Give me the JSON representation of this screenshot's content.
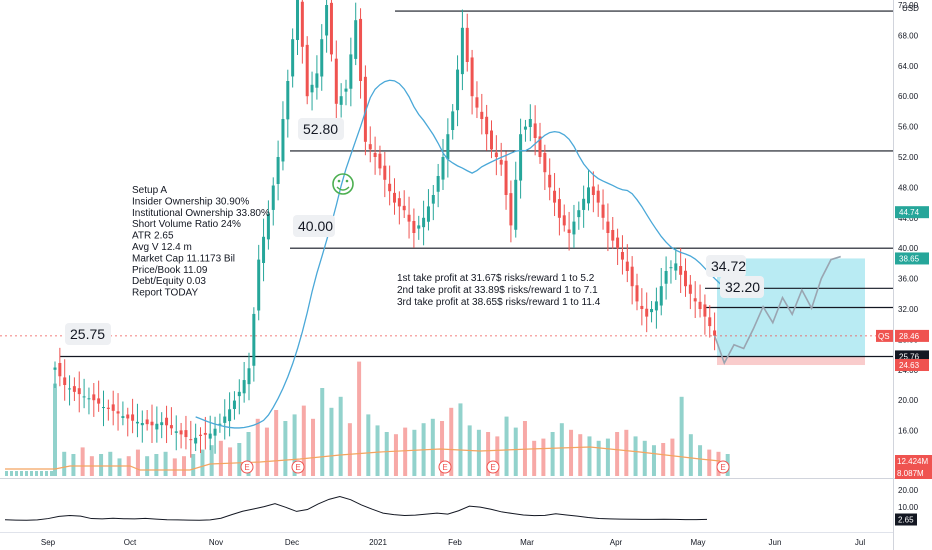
{
  "currency": "USD",
  "colors": {
    "up": "#26a69a",
    "down": "#ef5350",
    "ma": "#4aa8d8",
    "vol_ma": "#f4a460",
    "target_zone": "#7fdbea",
    "stop_zone": "#f8c6c6",
    "level_line": "#131722",
    "smiley": "#4caf50"
  },
  "setup_notes": [
    "Setup A",
    "Insider Ownership 30.90%",
    "Institutional Ownership 33.80%",
    "Short Volume Ratio 24%",
    "ATR 2.65",
    "Avg V 12.4 m",
    "Market Cap 11.1173 Bil",
    "Price/Book 11.09",
    "Debt/Equity 0.03",
    "Report TODAY"
  ],
  "profit_notes": [
    "1st take profit at 31.67$ risks/reward 1 to 5.2",
    "2nd take profit at 33.89$ risks/reward 1 to 7.1",
    "3rd take profit at 38.65$ risks/reward 1 to 11.4"
  ],
  "level_labels": [
    {
      "text": "52.80",
      "value": 52.8
    },
    {
      "text": "40.00",
      "value": 40.0
    },
    {
      "text": "25.75",
      "value": 25.75
    },
    {
      "text": "34.72",
      "value": 34.72
    },
    {
      "text": "32.20",
      "value": 32.2
    }
  ],
  "earnings_marker": "E",
  "chart_data": {
    "type": "candlestick",
    "title": "",
    "x_ticks": [
      "Sep",
      "Oct",
      "Nov",
      "Dec",
      "2021",
      "Feb",
      "Mar",
      "Apr",
      "May",
      "Jun",
      "Jul"
    ],
    "y_ticks": [
      72.0,
      68.0,
      64.0,
      60.0,
      56.0,
      52.0,
      48.0,
      44.0,
      40.0,
      36.0,
      32.0,
      28.0,
      24.0,
      20.0,
      16.0,
      12.0
    ],
    "ylim": [
      8,
      72
    ],
    "price_levels": [
      71.2,
      52.8,
      40.0,
      34.72,
      32.2,
      25.75
    ],
    "price_tags": [
      {
        "label": "44.74",
        "value": 44.74,
        "color": "#26a69a"
      },
      {
        "label": "38.65",
        "value": 38.65,
        "color": "#26a69a"
      },
      {
        "label": "28.46",
        "value": 28.46,
        "color": "#ef5350"
      },
      {
        "label": "25.76",
        "value": 25.76,
        "color": "#131722"
      },
      {
        "label": "24.63",
        "value": 24.63,
        "color": "#ef5350"
      }
    ],
    "symbol_tag": "QS",
    "volume_tags": [
      {
        "label": "12.424M",
        "color": "#ef5350"
      },
      {
        "label": "8.087M",
        "color": "#ef5350"
      }
    ],
    "price_path": [
      [
        0,
        24.3
      ],
      [
        2,
        22.0
      ],
      [
        4,
        21.1
      ],
      [
        6,
        20.5
      ],
      [
        8,
        20.0
      ],
      [
        10,
        19.1
      ],
      [
        12,
        18.6
      ],
      [
        14,
        17.9
      ],
      [
        16,
        17.3
      ],
      [
        18,
        17.0
      ],
      [
        20,
        16.7
      ],
      [
        22,
        17.1
      ],
      [
        24,
        16.3
      ],
      [
        26,
        15.5
      ],
      [
        28,
        14.8
      ],
      [
        30,
        15.3
      ],
      [
        32,
        15.6
      ],
      [
        34,
        16.9
      ],
      [
        36,
        18.8
      ],
      [
        38,
        21.1
      ],
      [
        40,
        24.2
      ],
      [
        42,
        38.5
      ],
      [
        44,
        44.5
      ],
      [
        46,
        52.0
      ],
      [
        48,
        62.0
      ],
      [
        50,
        73.0
      ],
      [
        52,
        60.0
      ],
      [
        54,
        63.0
      ],
      [
        56,
        72.0
      ],
      [
        58,
        59.0
      ],
      [
        60,
        61.0
      ],
      [
        62,
        70.0
      ],
      [
        64,
        54.0
      ],
      [
        66,
        52.0
      ],
      [
        68,
        49.0
      ],
      [
        70,
        46.0
      ],
      [
        72,
        45.0
      ],
      [
        74,
        42.0
      ],
      [
        76,
        44.0
      ],
      [
        78,
        47.0
      ],
      [
        80,
        52.0
      ],
      [
        82,
        58.0
      ],
      [
        84,
        69.0
      ],
      [
        86,
        60.0
      ],
      [
        88,
        57.0
      ],
      [
        90,
        53.0
      ],
      [
        92,
        51.0
      ],
      [
        94,
        43.0
      ],
      [
        96,
        55.0
      ],
      [
        98,
        57.0
      ],
      [
        100,
        52.0
      ],
      [
        102,
        48.0
      ],
      [
        104,
        44.0
      ],
      [
        106,
        42.0
      ],
      [
        108,
        45.0
      ],
      [
        110,
        48.0
      ],
      [
        112,
        46.0
      ],
      [
        114,
        42.0
      ],
      [
        116,
        40.0
      ],
      [
        118,
        37.0
      ],
      [
        120,
        33.0
      ],
      [
        122,
        31.0
      ],
      [
        124,
        33.0
      ],
      [
        126,
        37.0
      ],
      [
        128,
        38.0
      ],
      [
        130,
        35.0
      ],
      [
        132,
        33.0
      ],
      [
        134,
        31.0
      ],
      [
        136,
        28.5
      ]
    ],
    "projection_path": [
      [
        136,
        28.5
      ],
      [
        138,
        24.9
      ],
      [
        140,
        27.3
      ],
      [
        142,
        26.8
      ],
      [
        144,
        29.4
      ],
      [
        146,
        32.3
      ],
      [
        148,
        30.2
      ],
      [
        150,
        33.5
      ],
      [
        152,
        31.3
      ],
      [
        154,
        34.5
      ],
      [
        156,
        32.1
      ],
      [
        158,
        36.0
      ],
      [
        160,
        38.5
      ],
      [
        162,
        38.9
      ]
    ],
    "volume_series": [
      4.2,
      1.1,
      1.0,
      1.3,
      0.9,
      1.0,
      1.1,
      0.8,
      0.9,
      1.2,
      0.9,
      1.0,
      1.1,
      0.8,
      0.9,
      1.0,
      1.2,
      1.4,
      1.6,
      1.3,
      1.5,
      2.0,
      2.6,
      2.2,
      3.0,
      2.5,
      2.8,
      3.2,
      2.6,
      4.0,
      3.1,
      3.6,
      2.4,
      5.2,
      2.8,
      2.3,
      2.0,
      1.9,
      2.2,
      2.1,
      2.4,
      2.6,
      2.5,
      3.1,
      3.3,
      2.3,
      2.1,
      2.0,
      1.8,
      2.7,
      2.2,
      2.5,
      1.6,
      1.7,
      2.0,
      2.4,
      2.1,
      1.9,
      1.8,
      1.6,
      1.7,
      2.0,
      2.1,
      1.8,
      1.6,
      1.4,
      1.5,
      1.7,
      3.6,
      1.9,
      1.4,
      1.2,
      1.1,
      1.0
    ],
    "osc_ticks": [
      "20.00",
      "10.00"
    ],
    "osc_value_tag": "2.65",
    "osc_path": [
      2.5,
      2.3,
      2.2,
      2.4,
      3.2,
      4.5,
      5.0,
      4.6,
      3.2,
      3.0,
      3.4,
      3.1,
      3.0,
      3.3,
      2.9,
      2.5,
      2.4,
      2.3,
      2.2,
      2.4,
      3.4,
      5.5,
      7.5,
      8.8,
      10.2,
      12.0,
      9.8,
      7.4,
      8.5,
      11.8,
      14.5,
      16.2,
      14.3,
      11.2,
      8.7,
      6.4,
      5.5,
      5.0,
      5.2,
      5.8,
      6.4,
      5.8,
      7.8,
      10.5,
      9.9,
      8.7,
      7.1,
      6.2,
      5.3,
      4.9,
      5.1,
      6.0,
      5.3,
      4.6,
      3.8,
      3.2,
      3.0,
      2.9,
      2.8,
      2.7,
      2.7,
      2.8,
      2.7,
      2.6,
      2.6,
      2.7
    ]
  }
}
